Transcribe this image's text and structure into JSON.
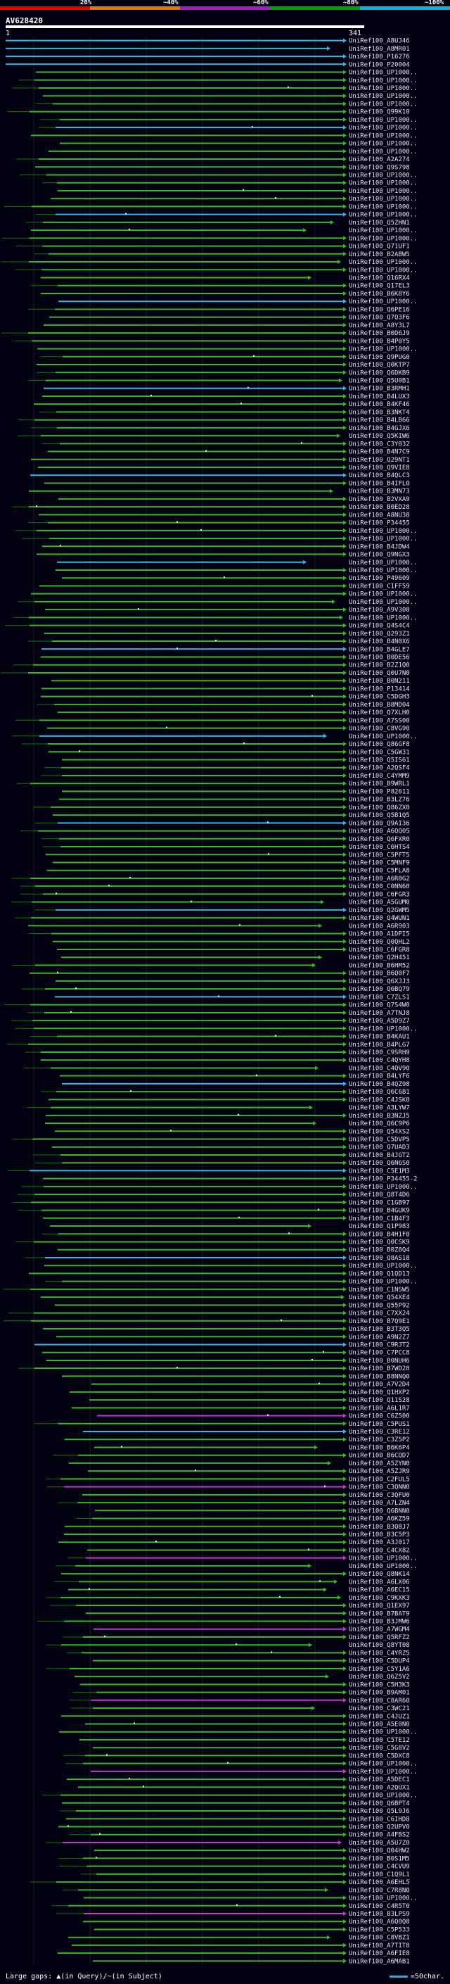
{
  "header": {
    "percent_labels": [
      "20%",
      "~40%",
      "~60%",
      "~80%",
      "~100%"
    ],
    "band_colors": [
      "#e00000",
      "#e07d00",
      "#a020c0",
      "#00a000",
      "#00b8d8"
    ]
  },
  "query": {
    "title": "AV628420",
    "start": "1",
    "end": "341"
  },
  "colors": {
    "cyan": "#38b7e5",
    "green": "#37b824",
    "magenta": "#c23bc8",
    "dark_green": "#0b7a0b",
    "grid": "#202030"
  },
  "hits": [
    "UniRef100_A8UJ46",
    "UniRef100_A8MR01",
    "UniRef100_P16276",
    "UniRef100_P20004",
    "UniRef100_UP1000..",
    "UniRef100_UP1000..",
    "UniRef100_UP1000..",
    "UniRef100_UP1000..",
    "UniRef100_UP1000..",
    "UniRef100_Q99K10",
    "UniRef100_UP1000..",
    "UniRef100_UP1000..",
    "UniRef100_UP1000..",
    "UniRef100_UP1000..",
    "UniRef100_UP1000..",
    "UniRef100_A2A274",
    "UniRef100_Q9S798",
    "UniRef100_UP1000..",
    "UniRef100_UP1000..",
    "UniRef100_UP1000..",
    "UniRef100_UP1000..",
    "UniRef100_UP1000..",
    "UniRef100_UP1000..",
    "UniRef100_Q5ZHN1",
    "UniRef100_UP1000..",
    "UniRef100_UP1000..",
    "UniRef100_Q71UF1",
    "UniRef100_B2ABW5",
    "UniRef100_UP1000..",
    "UniRef100_UP1000..",
    "UniRef100_Q16RX4",
    "UniRef100_Q17EL3",
    "UniRef100_B6K8Y6",
    "UniRef100_UP1000..",
    "UniRef100_Q6PE16",
    "UniRef100_Q7Q3F6",
    "UniRef100_A8Y3L7",
    "UniRef100_B0D6J9",
    "UniRef100_B4P0Y5",
    "UniRef100_UP1000..",
    "UniRef100_Q9PUG0",
    "UniRef100_Q0KTP7",
    "UniRef100_Q6DKB9",
    "UniRef100_Q5U0B1",
    "UniRef100_B3RMH1",
    "UniRef100_B4LUX3",
    "UniRef100_B4KF46",
    "UniRef100_B3NKT4",
    "UniRef100_B4LB66",
    "UniRef100_B4GJX6",
    "UniRef100_Q5KIW6",
    "UniRef100_C3Y032",
    "UniRef100_B4N7C9",
    "UniRef100_Q29NT1",
    "UniRef100_Q9VIE8",
    "UniRef100_B4QLC3",
    "UniRef100_B4IFL0",
    "UniRef100_B3MN73",
    "UniRef100_B2VXA9",
    "UniRef100_B0ED28",
    "UniRef100_A8NU38",
    "UniRef100_P34455",
    "UniRef100_UP1000..",
    "UniRef100_UP1000..",
    "UniRef100_B4JDW4",
    "UniRef100_Q9NGX3",
    "UniRef100_UP1000..",
    "UniRef100_UP1000..",
    "UniRef100_P49609",
    "UniRef100_C1FF59",
    "UniRef100_UP1000..",
    "UniRef100_UP1000..",
    "UniRef100_A9V308",
    "UniRef100_UP1000..",
    "UniRef100_Q4S4C4",
    "UniRef100_Q293Z1",
    "UniRef100_B4N0X6",
    "UniRef100_B4GLE7",
    "UniRef100_B0DE56",
    "UniRef100_B2Z1Q0",
    "UniRef100_Q0U7N0",
    "UniRef100_B0N211",
    "UniRef100_P13414",
    "UniRef100_C5DGH3",
    "UniRef100_B8MD04",
    "UniRef100_Q7XLH0",
    "UniRef100_A7SS00",
    "UniRef100_C8VG90",
    "UniRef100_UP1000..",
    "UniRef100_Q86GF8",
    "UniRef100_C5GW31",
    "UniRef100_Q5IS61",
    "UniRef100_A2QSF4",
    "UniRef100_C4YMM9",
    "UniRef100_B9WRL1",
    "UniRef100_P82611",
    "UniRef100_B3LZ76",
    "UniRef100_Q86ZX0",
    "UniRef100_Q5B1Q5",
    "UniRef100_Q9AI36",
    "UniRef100_A6QQ05",
    "UniRef100_Q6FXR0",
    "UniRef100_C6HTS4",
    "UniRef100_C5PFT5",
    "UniRef100_C5MNF9",
    "UniRef100_C5FLA8",
    "UniRef100_A6R0G2",
    "UniRef100_C0NN60",
    "UniRef100_C6FGR3",
    "UniRef100_A5GUM0",
    "UniRef100_Q2GWM5",
    "UniRef100_Q4WUN1",
    "UniRef100_A6R903",
    "UniRef100_A1DPI5",
    "UniRef100_Q0QHL2",
    "UniRef100_C6FGR8",
    "UniRef100_Q2H451",
    "UniRef100_B6HM52",
    "UniRef100_B6Q0F7",
    "UniRef100_Q6XJJ3",
    "UniRef100_Q6BQ79",
    "UniRef100_C7ZLS1",
    "UniRef100_Q7S4W0",
    "UniRef100_A7TNJ8",
    "UniRef100_A5D9Z7",
    "UniRef100_UP1000..",
    "UniRef100_B4KAU1",
    "UniRef100_B4PLG7",
    "UniRef100_C9SRH9",
    "UniRef100_C4QYH8",
    "UniRef100_C4QV90",
    "UniRef100_B4LYF6",
    "UniRef100_B4QZ98",
    "UniRef100_Q6C6B1",
    "UniRef100_C4JSK0",
    "UniRef100_A3LYW7",
    "UniRef100_B3NZJ5",
    "UniRef100_Q6C9P6",
    "UniRef100_Q54XS2",
    "UniRef100_C5DVP5",
    "UniRef100_Q7UAD3",
    "UniRef100_B4JGT2",
    "UniRef100_Q6N6S0",
    "UniRef100_C5E1M3",
    "UniRef100_P34455-2",
    "UniRef100_UP1000..",
    "UniRef100_Q8T4D6",
    "UniRef100_C1GB97",
    "UniRef100_B4GUK9",
    "UniRef100_C1B4F3",
    "UniRef100_Q1P983",
    "UniRef100_B4H1F0",
    "UniRef100_Q0CSK9",
    "UniRef100_B0Z8Q4",
    "UniRef100_Q8AS18",
    "UniRef100_UP1000..",
    "UniRef100_Q1QD13",
    "UniRef100_UP1000..",
    "UniRef100_C1NSW5",
    "UniRef100_Q54XE4",
    "UniRef100_Q55P92",
    "UniRef100_C7XX24",
    "UniRef100_B7Q9E1",
    "UniRef100_B3T3Q5",
    "UniRef100_A9N2Z7",
    "UniRef100_C9RJT2",
    "UniRef100_C7PCC8",
    "UniRef100_B0NUH6",
    "UniRef100_B7WD28",
    "UniRef100_B8NNQ0",
    "UniRef100_A7V2D4",
    "UniRef100_Q1HXP2",
    "UniRef100_Q11S28",
    "UniRef100_A6L1R7",
    "UniRef100_C6Z500",
    "UniRef100_C5PUS1",
    "UniRef100_C3RE12",
    "UniRef100_C3Z5P2",
    "UniRef100_B6K6P4",
    "UniRef100_B6CQD7",
    "UniRef100_A5ZYN0",
    "UniRef100_A5ZJR9",
    "UniRef100_C2FUL5",
    "UniRef100_C3QNN0",
    "UniRef100_C3QFU0",
    "UniRef100_A7LZN4",
    "UniRef100_Q6BNN0",
    "UniRef100_A6KZ59",
    "UniRef100_B3Q8J7",
    "UniRef100_B3C5P3",
    "UniRef100_A3J017",
    "UniRef100_C4CX82",
    "UniRef100_UP1000..",
    "UniRef100_UP1000..",
    "UniRef100_Q8NK14",
    "UniRef100_A6LX06",
    "UniRef100_A6EC15",
    "UniRef100_C9KXK3",
    "UniRef100_Q1EX97",
    "UniRef100_B7BAT9",
    "UniRef100_B3JMW6",
    "UniRef100_A7WGM4",
    "UniRef100_Q5RFZ2",
    "UniRef100_Q8YT08",
    "UniRef100_C4YRZ5",
    "UniRef100_C5DUP4",
    "UniRef100_C5Y1A6",
    "UniRef100_Q6Z5V2",
    "UniRef100_C5H3K3",
    "UniRef100_B9AM01",
    "UniRef100_C8AR60",
    "UniRef100_C3WC21",
    "UniRef100_C4JUZ1",
    "UniRef100_A5E0N0",
    "UniRef100_UP1000..",
    "UniRef100_C5TE12",
    "UniRef100_C5G8V2",
    "UniRef100_C5DXC8",
    "UniRef100_UP1000..",
    "UniRef100_UP1000..",
    "UniRef100_A5DEC1",
    "UniRef100_A2QUX1",
    "UniRef100_UP1000..",
    "UniRef100_Q6BPT4",
    "UniRef100_Q5L9J6",
    "UniRef100_C6IHD8",
    "UniRef100_Q2UPV0",
    "UniRef100_A4FBS2",
    "UniRef100_A5U7Z0",
    "UniRef100_Q04HW2",
    "UniRef100_B0S1M5",
    "UniRef100_C4CVU9",
    "UniRef100_C1Q9L1",
    "UniRef100_A6EHL5",
    "UniRef100_C7R8N0",
    "UniRef100_UP1000..",
    "UniRef100_C4R5T0",
    "UniRef100_B3LPS9",
    "UniRef100_A6Q0Q8",
    "UniRef100_C5P533",
    "UniRef100_C8VBZ1",
    "UniRef100_A7TIT8",
    "UniRef100_A6FIE8",
    "UniRef100_A6MAB1"
  ],
  "footer": {
    "large_gaps_label": "Large gaps:",
    "in_query_symbol": "▲",
    "in_query_label": "(in Query)",
    "slash": "/",
    "in_subject_symbol": "~",
    "in_subject_label": "(in Subject)",
    "scale_label": "=50char."
  }
}
